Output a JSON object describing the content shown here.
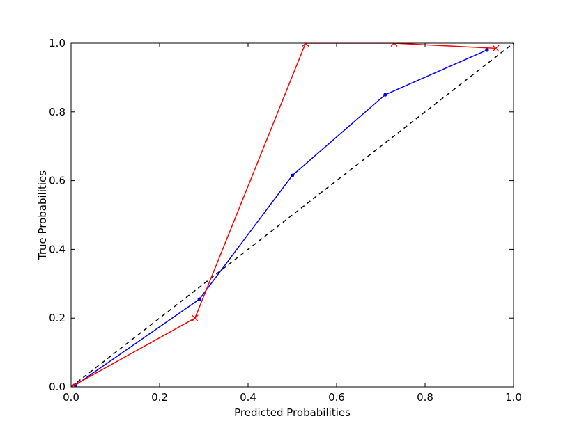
{
  "chart_data": {
    "type": "line",
    "title": "",
    "xlabel": "Predicted Probabilities",
    "ylabel": "True Probabilities",
    "xlim": [
      0.0,
      1.0
    ],
    "ylim": [
      0.0,
      1.0
    ],
    "grid": false,
    "xticks": [
      "0.0",
      "0.2",
      "0.4",
      "0.6",
      "0.8",
      "1.0"
    ],
    "yticks": [
      "0.0",
      "0.2",
      "0.4",
      "0.6",
      "0.8",
      "1.0"
    ],
    "series": [
      {
        "color": "#0000ff",
        "marker": "dot",
        "x": [
          0.01,
          0.29,
          0.5,
          0.71,
          0.94
        ],
        "y": [
          0.005,
          0.255,
          0.615,
          0.85,
          0.98
        ]
      },
      {
        "color": "#ff0000",
        "marker": "x",
        "x": [
          0.0,
          0.28,
          0.53,
          0.73,
          0.96
        ],
        "y": [
          0.0,
          0.2,
          1.0,
          1.0,
          0.985
        ]
      },
      {
        "color": "#000000",
        "marker": "none",
        "dashed": true,
        "x": [
          0.0,
          1.0
        ],
        "y": [
          0.0,
          1.0
        ]
      }
    ]
  }
}
